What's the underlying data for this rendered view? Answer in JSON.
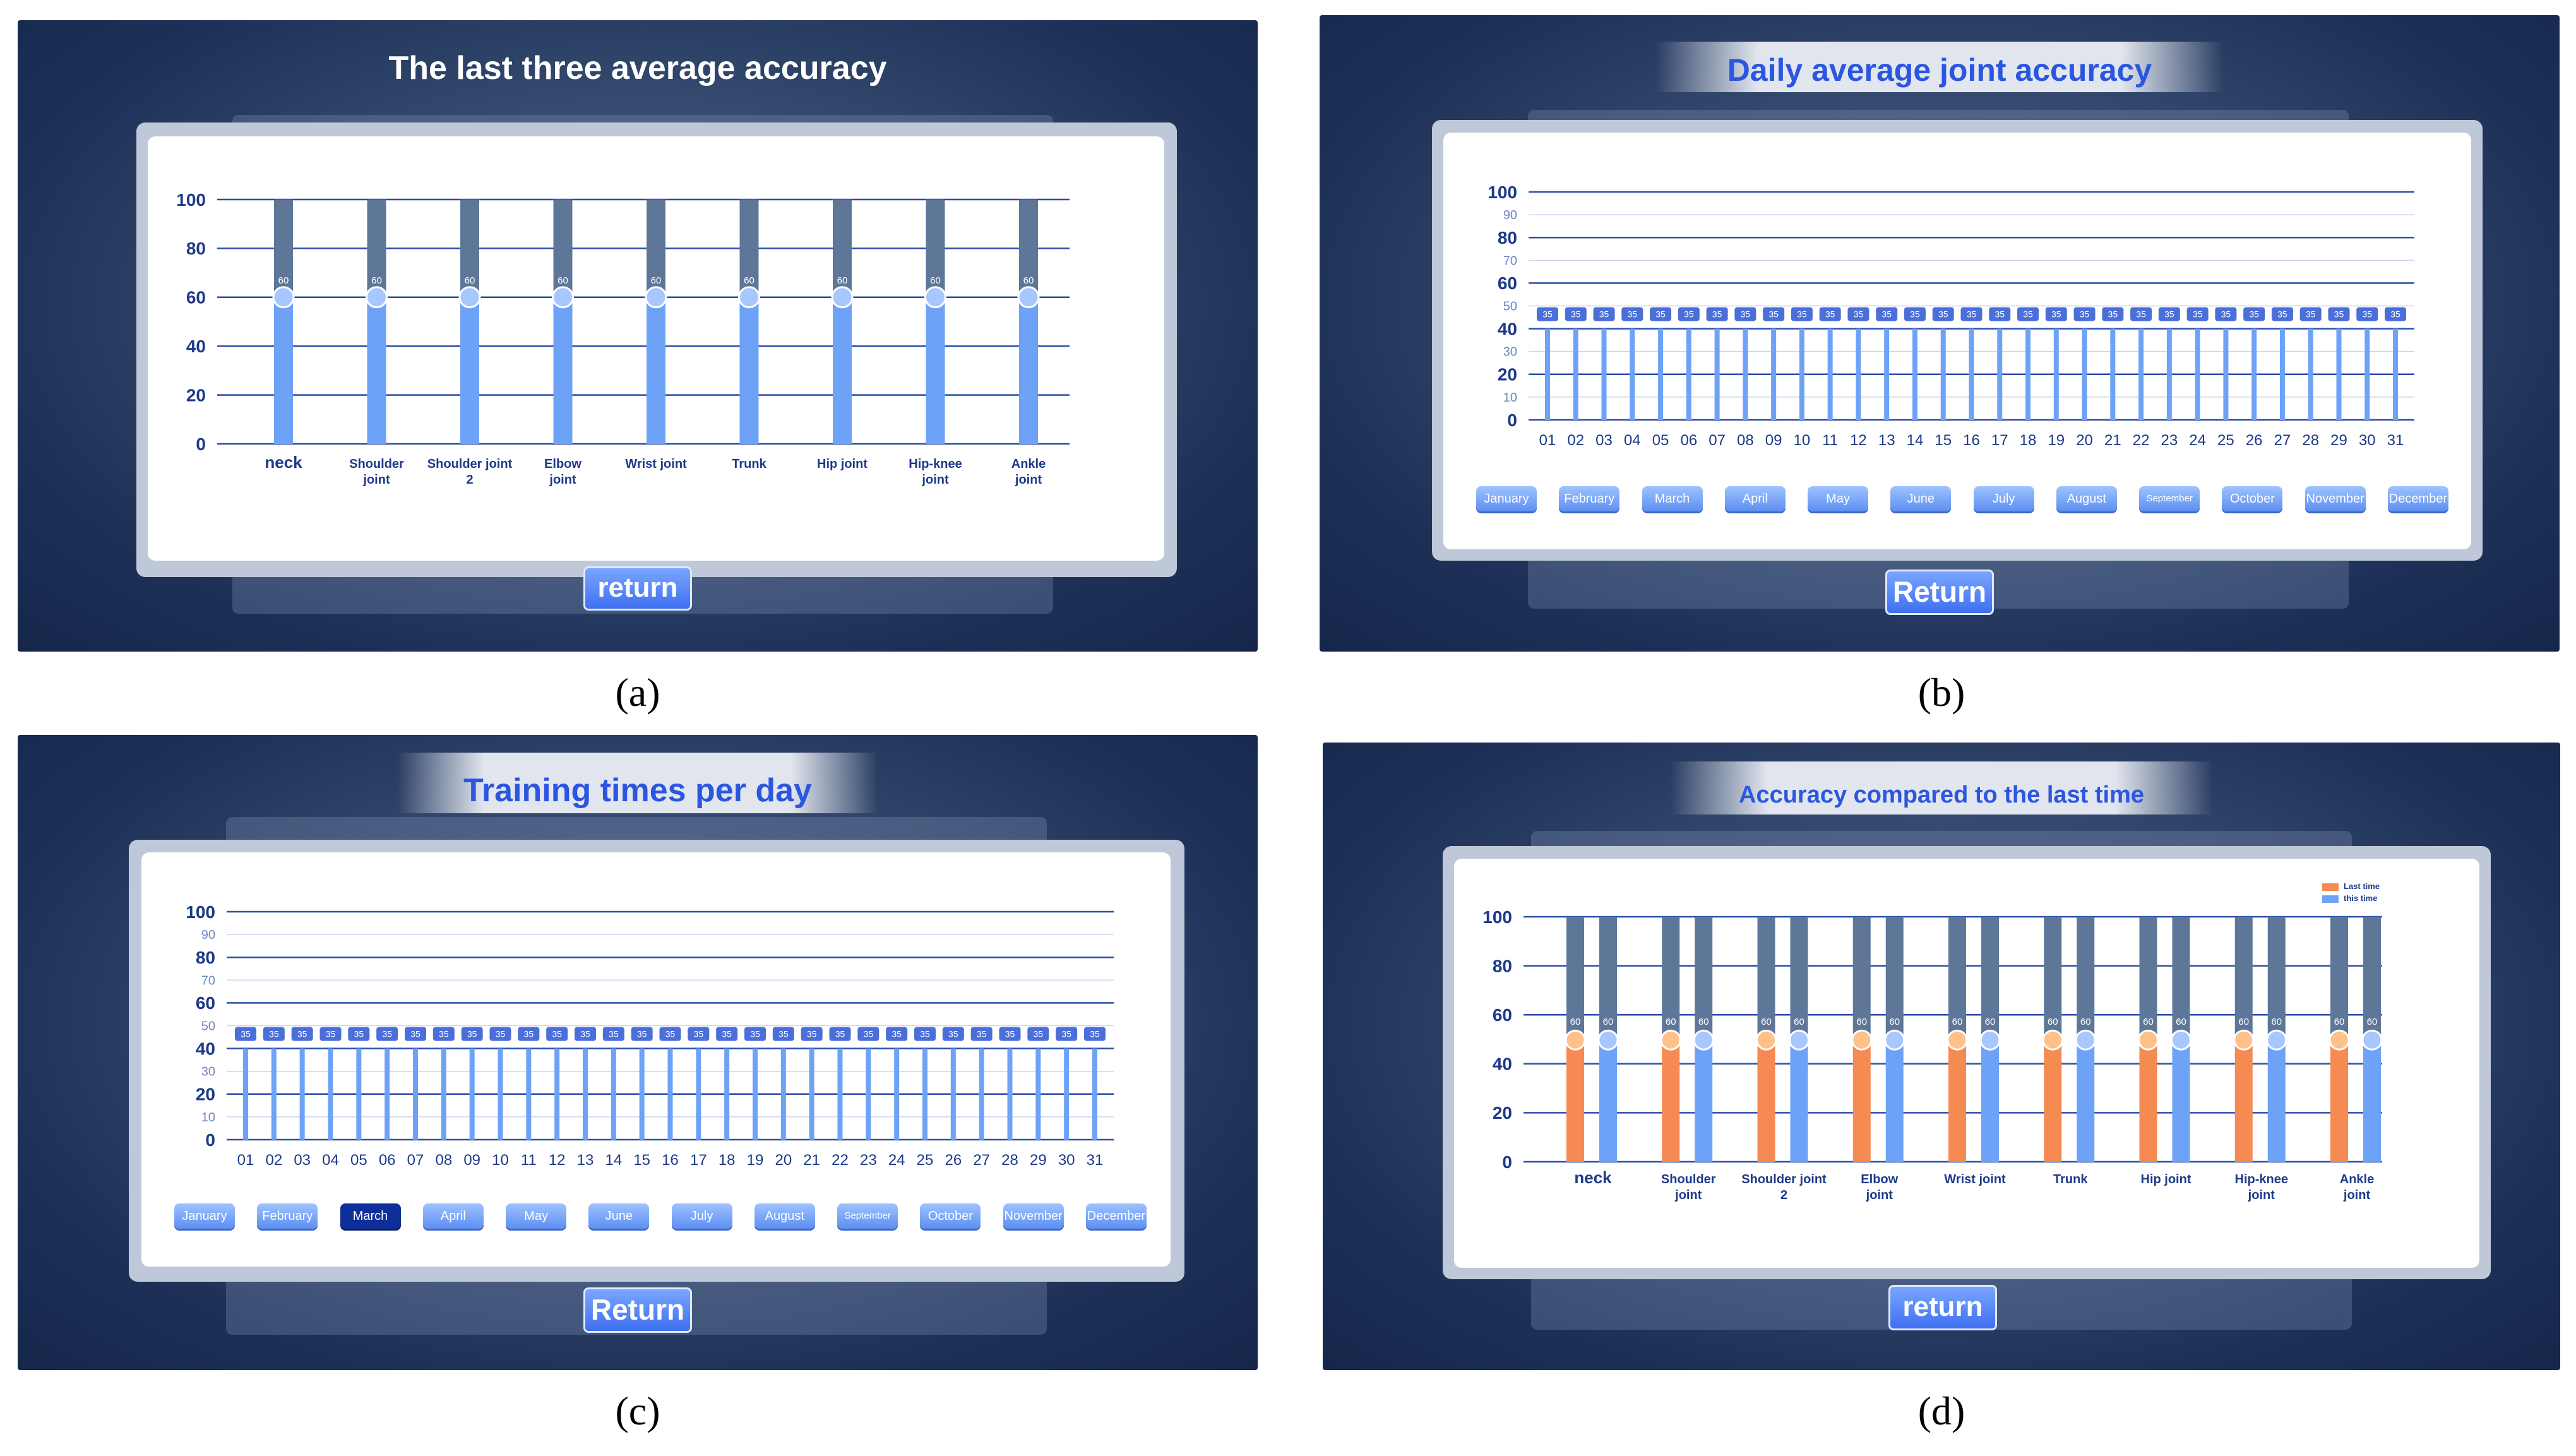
{
  "colors": {
    "bar_blue": "#6ea2f7",
    "bar_bg": "#5e7799",
    "bar_orange": "#f58a52",
    "axis_blue": "#2b4ea6"
  },
  "panels": [
    {
      "id": "a",
      "title": "The last three average accuracy",
      "return_label": "return",
      "caption": "(a)",
      "chart_data": {
        "type": "bar",
        "categories": [
          "neck",
          "Shoulder joint",
          "Shoulder joint 2",
          "Elbow joint",
          "Wrist joint",
          "Trunk",
          "Hip joint",
          "Hip-knee joint",
          "Ankle joint"
        ],
        "values": [
          60,
          60,
          60,
          60,
          60,
          60,
          60,
          60,
          60
        ],
        "ylim": [
          0,
          100
        ],
        "yticks": [
          "0",
          "20",
          "40",
          "60",
          "80",
          "100"
        ]
      }
    },
    {
      "id": "b",
      "title": "Daily average joint accuracy",
      "return_label": "Return",
      "caption": "(b)",
      "months": [
        "January",
        "February",
        "March",
        "April",
        "May",
        "June",
        "July",
        "August",
        "September",
        "October",
        "November",
        "December"
      ],
      "chart_data": {
        "type": "bar",
        "categories": [
          "01",
          "02",
          "03",
          "04",
          "05",
          "06",
          "07",
          "08",
          "09",
          "10",
          "11",
          "12",
          "13",
          "14",
          "15",
          "16",
          "17",
          "18",
          "19",
          "20",
          "21",
          "22",
          "23",
          "24",
          "25",
          "26",
          "27",
          "28",
          "29",
          "30",
          "31"
        ],
        "values": [
          35,
          35,
          35,
          35,
          35,
          35,
          35,
          35,
          35,
          35,
          35,
          35,
          35,
          35,
          35,
          35,
          35,
          35,
          35,
          35,
          35,
          35,
          35,
          35,
          35,
          35,
          35,
          35,
          35,
          35,
          35
        ],
        "ylim": [
          0,
          100
        ],
        "yticks": [
          "0",
          "10",
          "20",
          "30",
          "40",
          "50",
          "60",
          "70",
          "80",
          "90",
          "100"
        ]
      }
    },
    {
      "id": "c",
      "title": "Training times per day",
      "return_label": "Return",
      "caption": "(c)",
      "months": [
        "January",
        "February",
        "March",
        "April",
        "May",
        "June",
        "July",
        "August",
        "September",
        "October",
        "November",
        "December"
      ],
      "selected_month": "March",
      "chart_data": {
        "type": "bar",
        "categories": [
          "01",
          "02",
          "03",
          "04",
          "05",
          "06",
          "07",
          "08",
          "09",
          "10",
          "11",
          "12",
          "13",
          "14",
          "15",
          "16",
          "17",
          "18",
          "19",
          "20",
          "21",
          "22",
          "23",
          "24",
          "25",
          "26",
          "27",
          "28",
          "29",
          "30",
          "31"
        ],
        "values": [
          35,
          35,
          35,
          35,
          35,
          35,
          35,
          35,
          35,
          35,
          35,
          35,
          35,
          35,
          35,
          35,
          35,
          35,
          35,
          35,
          35,
          35,
          35,
          35,
          35,
          35,
          35,
          35,
          35,
          35,
          35
        ],
        "ylim": [
          0,
          100
        ],
        "yticks": [
          "0",
          "10",
          "20",
          "30",
          "40",
          "50",
          "60",
          "70",
          "80",
          "90",
          "100"
        ]
      }
    },
    {
      "id": "d",
      "title": "Accuracy compared to the last time",
      "return_label": "return",
      "caption": "(d)",
      "chart_data": {
        "type": "bar",
        "categories": [
          "neck",
          "Shoulder joint",
          "Shoulder joint 2",
          "Elbow joint",
          "Wrist joint",
          "Trunk",
          "Hip joint",
          "Hip-knee joint",
          "Ankle joint"
        ],
        "series": [
          {
            "name": "Last time",
            "values": [
              60,
              60,
              60,
              60,
              60,
              60,
              60,
              60,
              60
            ]
          },
          {
            "name": "this time",
            "values": [
              60,
              60,
              60,
              60,
              60,
              60,
              60,
              60,
              60
            ]
          }
        ],
        "ylim": [
          0,
          100
        ],
        "yticks": [
          "0",
          "20",
          "40",
          "60",
          "80",
          "100"
        ],
        "legend": "top-right"
      }
    }
  ]
}
